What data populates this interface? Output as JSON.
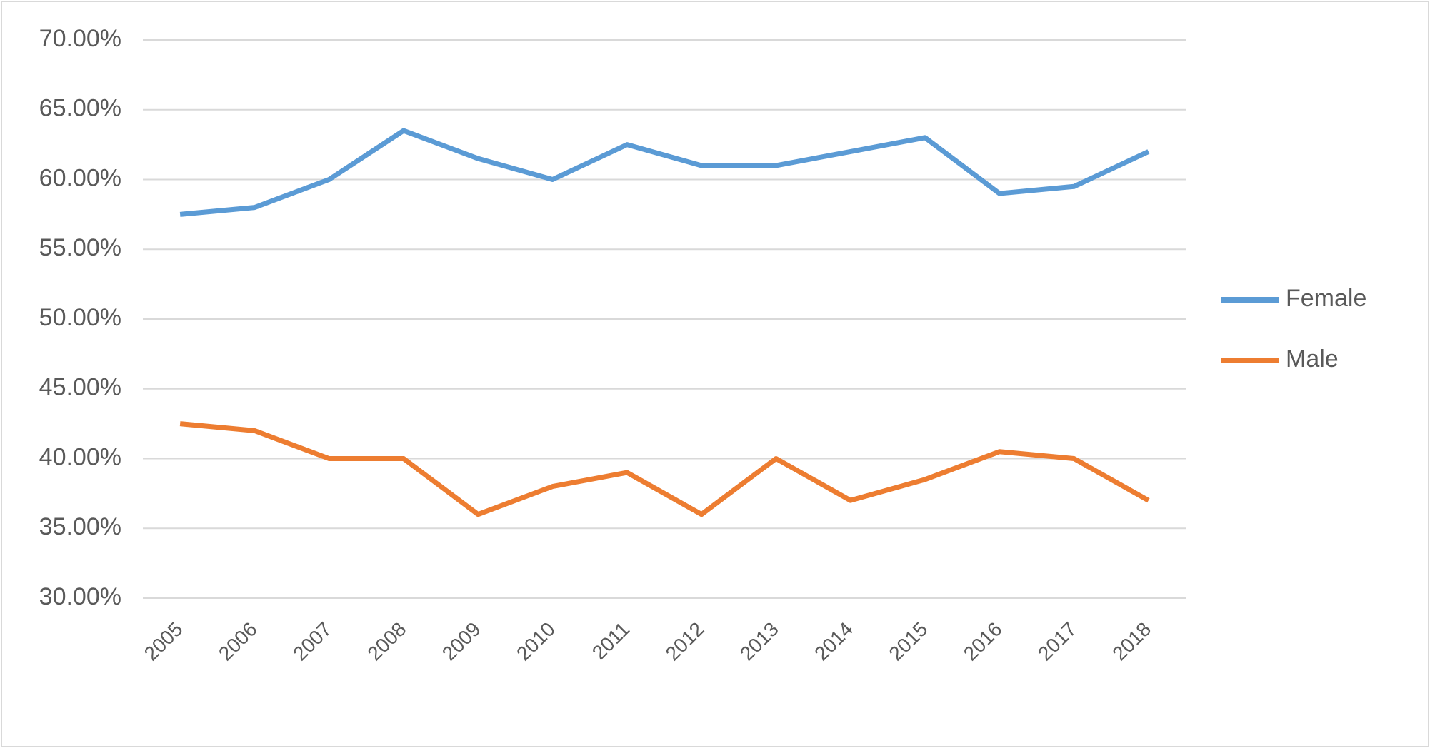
{
  "chart_data": {
    "type": "line",
    "categories": [
      "2005",
      "2006",
      "2007",
      "2008",
      "2009",
      "2010",
      "2011",
      "2012",
      "2013",
      "2014",
      "2015",
      "2016",
      "2017",
      "2018"
    ],
    "series": [
      {
        "name": "Female",
        "color": "#5b9bd5",
        "values": [
          57.5,
          58,
          60,
          63.5,
          61.5,
          60,
          62.5,
          61,
          61,
          62,
          63,
          59,
          59.5,
          62
        ]
      },
      {
        "name": "Male",
        "color": "#ed7d31",
        "values": [
          42.5,
          42,
          40,
          40,
          36,
          38,
          39,
          36,
          40,
          37,
          38.5,
          40.5,
          40,
          37
        ]
      }
    ],
    "ylim": [
      30,
      70
    ],
    "yticks": [
      {
        "value": 30,
        "label": "30.00%"
      },
      {
        "value": 35,
        "label": "35.00%"
      },
      {
        "value": 40,
        "label": "40.00%"
      },
      {
        "value": 45,
        "label": "45.00%"
      },
      {
        "value": 50,
        "label": "50.00%"
      },
      {
        "value": 55,
        "label": "55.00%"
      },
      {
        "value": 60,
        "label": "60.00%"
      },
      {
        "value": 65,
        "label": "65.00%"
      },
      {
        "value": 70,
        "label": "70.00%"
      }
    ],
    "grid": true,
    "legend": "right"
  }
}
